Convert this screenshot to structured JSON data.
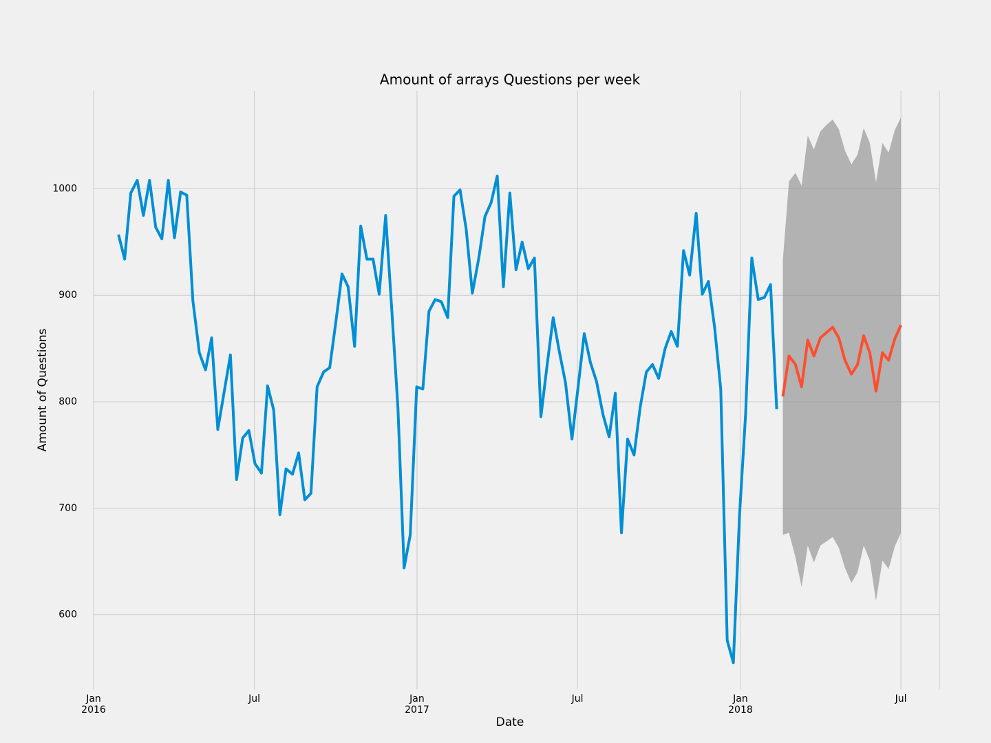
{
  "chart_data": {
    "type": "line",
    "title": "Amount of arrays Questions per week",
    "x_label": "Date",
    "y_label": "Amount of Questions",
    "xlim": [
      2016,
      2018.615
    ],
    "ylim": [
      530,
      1092
    ],
    "xticks": [
      {
        "value": 2016,
        "label": "Jan\n2016"
      },
      {
        "value": 2016.497,
        "label": "Jul"
      },
      {
        "value": 2017,
        "label": "Jan\n2017"
      },
      {
        "value": 2017.496,
        "label": "Jul"
      },
      {
        "value": 2018,
        "label": "Jan\n2018"
      },
      {
        "value": 2018.496,
        "label": "Jul"
      }
    ],
    "yticks": [
      600,
      700,
      800,
      900,
      1000
    ],
    "grid": true,
    "series": [
      {
        "color": "#008fd5",
        "x": [
          2016.077,
          2016.096,
          2016.115,
          2016.135,
          2016.154,
          2016.173,
          2016.192,
          2016.211,
          2016.231,
          2016.25,
          2016.269,
          2016.288,
          2016.307,
          2016.327,
          2016.346,
          2016.365,
          2016.384,
          2016.403,
          2016.423,
          2016.442,
          2016.461,
          2016.48,
          2016.499,
          2016.519,
          2016.538,
          2016.557,
          2016.576,
          2016.595,
          2016.615,
          2016.634,
          2016.653,
          2016.672,
          2016.691,
          2016.711,
          2016.73,
          2016.749,
          2016.768,
          2016.787,
          2016.807,
          2016.826,
          2016.845,
          2016.864,
          2016.883,
          2016.903,
          2016.922,
          2016.941,
          2016.96,
          2016.979,
          2016.999,
          2017.018,
          2017.037,
          2017.056,
          2017.075,
          2017.095,
          2017.114,
          2017.133,
          2017.152,
          2017.171,
          2017.191,
          2017.21,
          2017.229,
          2017.248,
          2017.267,
          2017.287,
          2017.306,
          2017.325,
          2017.344,
          2017.363,
          2017.383,
          2017.402,
          2017.421,
          2017.44,
          2017.459,
          2017.479,
          2017.498,
          2017.517,
          2017.536,
          2017.555,
          2017.575,
          2017.594,
          2017.613,
          2017.632,
          2017.651,
          2017.671,
          2017.69,
          2017.709,
          2017.728,
          2017.747,
          2017.767,
          2017.786,
          2017.805,
          2017.824,
          2017.843,
          2017.863,
          2017.882,
          2017.901,
          2017.92,
          2017.939,
          2017.959,
          2017.978,
          2017.997,
          2018.016,
          2018.035,
          2018.055,
          2018.074,
          2018.093,
          2018.112
        ],
        "values": [
          957,
          934,
          996,
          1008,
          975,
          1008,
          964,
          953,
          1008,
          954,
          997,
          994,
          895,
          846,
          830,
          860,
          774,
          808,
          844,
          727,
          766,
          773,
          742,
          733,
          815,
          792,
          694,
          737,
          732,
          752,
          708,
          714,
          814,
          828,
          832,
          875,
          920,
          908,
          852,
          965,
          934,
          934,
          901,
          975,
          886,
          794,
          644,
          675,
          814,
          812,
          885,
          896,
          894,
          879,
          993,
          999,
          962,
          902,
          935,
          974,
          987,
          1012,
          908,
          996,
          924,
          950,
          925,
          935,
          786,
          834,
          879,
          847,
          818,
          765,
          814,
          864,
          837,
          819,
          788,
          767,
          808,
          677,
          765,
          750,
          795,
          828,
          835,
          822,
          850,
          866,
          852,
          942,
          919,
          977,
          901,
          913,
          870,
          812,
          576,
          555,
          693,
          789,
          935,
          896,
          898,
          910,
          793
        ]
      },
      {
        "color": "#fc4f30",
        "band_color": "#7f7f7f",
        "x": [
          2018.131,
          2018.15,
          2018.17,
          2018.189,
          2018.208,
          2018.227,
          2018.247,
          2018.266,
          2018.285,
          2018.304,
          2018.323,
          2018.343,
          2018.362,
          2018.381,
          2018.4,
          2018.419,
          2018.439,
          2018.458,
          2018.477,
          2018.496
        ],
        "values": [
          805,
          843,
          835,
          814,
          858,
          843,
          860,
          865,
          870,
          860,
          839,
          826,
          835,
          862,
          846,
          810,
          846,
          839,
          859,
          872
        ],
        "lower": [
          675,
          677,
          654,
          626,
          665,
          649,
          665,
          669,
          673,
          663,
          644,
          630,
          640,
          665,
          651,
          613,
          651,
          643,
          664,
          677
        ],
        "upper": [
          933,
          1007,
          1015,
          1003,
          1050,
          1037,
          1054,
          1060,
          1065,
          1056,
          1036,
          1023,
          1032,
          1057,
          1043,
          1006,
          1043,
          1034,
          1055,
          1067
        ]
      }
    ]
  }
}
